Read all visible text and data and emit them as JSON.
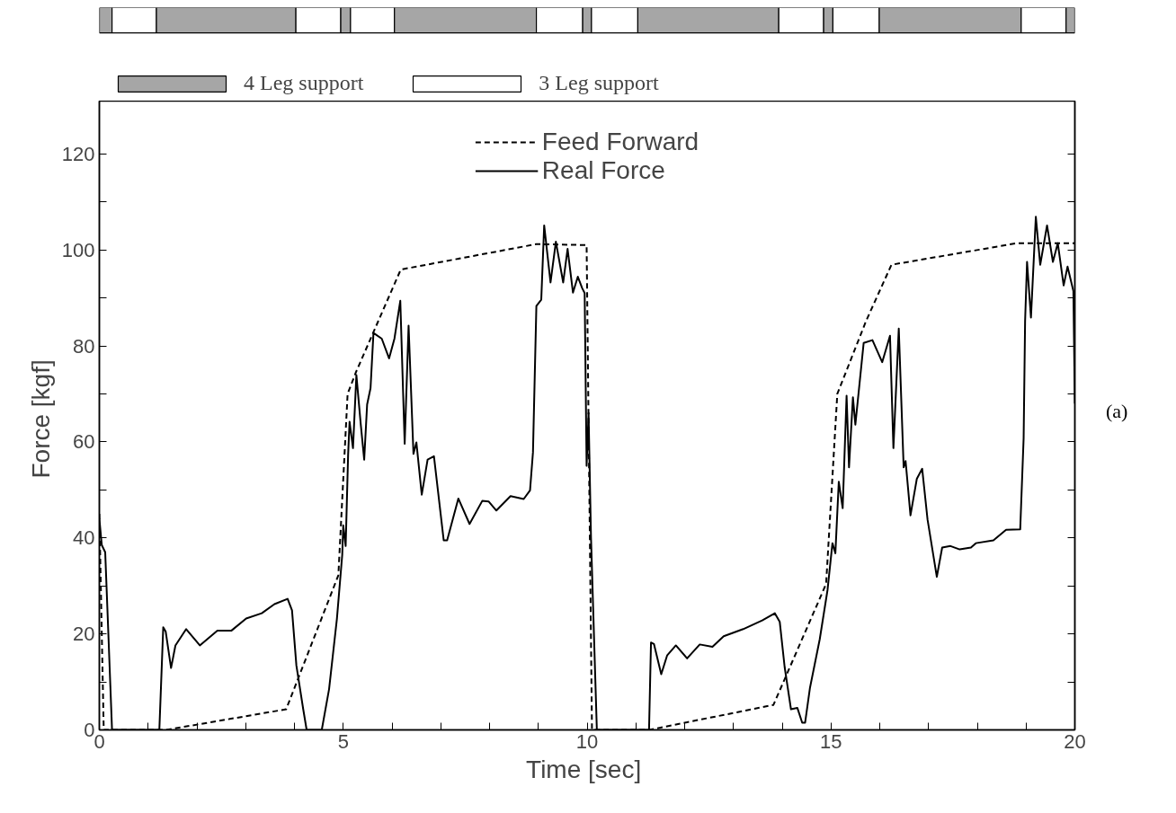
{
  "chart_data": [
    {
      "type": "bar",
      "orientation": "horizontal",
      "stacked": true,
      "categories": [
        null
      ],
      "xlim": [
        0,
        20
      ],
      "tick_labels": false,
      "legend": "bottom left",
      "series": [
        {
          "name": "4 Leg support",
          "color": "#a6a6a6",
          "values": [
            0.26
          ]
        },
        {
          "name": "3 Leg support",
          "color": "#ffffff",
          "values": [
            0.91
          ]
        },
        {
          "color": "#a6a6a6",
          "values": [
            2.86
          ]
        },
        {
          "color": "#ffffff",
          "values": [
            0.92
          ]
        },
        {
          "color": "#a6a6a6",
          "values": [
            0.2
          ]
        },
        {
          "color": "#ffffff",
          "values": [
            0.9
          ]
        },
        {
          "color": "#a6a6a6",
          "values": [
            2.91
          ]
        },
        {
          "color": "#ffffff",
          "values": [
            0.95
          ]
        },
        {
          "color": "#a6a6a6",
          "values": [
            0.18
          ]
        },
        {
          "color": "#ffffff",
          "values": [
            0.95
          ]
        },
        {
          "color": "#a6a6a6",
          "values": [
            2.89
          ]
        },
        {
          "color": "#ffffff",
          "values": [
            0.92
          ]
        },
        {
          "color": "#a6a6a6",
          "values": [
            0.19
          ]
        },
        {
          "color": "#ffffff",
          "values": [
            0.95
          ]
        },
        {
          "color": "#a6a6a6",
          "values": [
            2.91
          ]
        },
        {
          "color": "#ffffff",
          "values": [
            0.92
          ]
        },
        {
          "color": "#a6a6a6",
          "values": [
            0.18
          ]
        }
      ]
    },
    {
      "type": "line",
      "xlabel": "Time  [sec]",
      "ylabel": "Force  [kgf]",
      "xlim": [
        0,
        20
      ],
      "ylim": [
        0,
        131
      ],
      "xticks": [
        0,
        {
          "value": 1,
          "label": null
        },
        {
          "value": 2,
          "label": null
        },
        {
          "value": 3,
          "label": null
        },
        {
          "value": 4,
          "label": null
        },
        5,
        {
          "value": 6,
          "label": null
        },
        {
          "value": 7,
          "label": null
        },
        {
          "value": 8,
          "label": null
        },
        {
          "value": 9,
          "label": null
        },
        10,
        {
          "value": 11,
          "label": null
        },
        {
          "value": 12,
          "label": null
        },
        {
          "value": 13,
          "label": null
        },
        {
          "value": 14,
          "label": null
        },
        15,
        {
          "value": 16,
          "label": null
        },
        {
          "value": 17,
          "label": null
        },
        {
          "value": 18,
          "label": null
        },
        {
          "value": 19,
          "label": null
        },
        20
      ],
      "yticks": [
        0,
        {
          "value": 10,
          "label": null
        },
        20,
        {
          "value": 30,
          "label": null
        },
        40,
        {
          "value": 50,
          "label": null
        },
        60,
        {
          "value": 70,
          "label": null
        },
        80,
        {
          "value": 90,
          "label": null
        },
        100,
        {
          "value": 110,
          "label": null
        },
        120
      ],
      "grid": false,
      "legend": "top",
      "marker": "none",
      "series": [
        {
          "name": "Feed Forward",
          "color": "#000000",
          "line_style": "dashed",
          "x": [
            0,
            0.09,
            1.37,
            3.83,
            4.9,
            5.09,
            5.26,
            6.18,
            8.96,
            9.99,
            10.1,
            11.27,
            13.82,
            14.9,
            15.13,
            15.72,
            16.24,
            18.82,
            20
          ],
          "values": [
            45,
            0,
            0,
            4.3,
            32.2,
            70,
            74.5,
            95.9,
            101.2,
            101,
            0,
            0,
            5.2,
            30.4,
            70,
            85.2,
            96.9,
            101.4,
            101.4
          ]
        },
        {
          "name": "Real Force",
          "color": "#000000",
          "line_style": "solid",
          "x": [
            0,
            0.05,
            0.12,
            0.18,
            0.26,
            1.23,
            1.31,
            1.36,
            1.47,
            1.56,
            1.78,
            2.06,
            2.42,
            2.71,
            3.01,
            3.33,
            3.59,
            3.86,
            3.95,
            4.04,
            4.18,
            4.25,
            4.56,
            4.71,
            4.87,
            4.98,
            5.0,
            5.05,
            5.1,
            5.13,
            5.2,
            5.27,
            5.36,
            5.43,
            5.49,
            5.56,
            5.62,
            5.79,
            5.94,
            6.05,
            6.17,
            6.26,
            6.34,
            6.44,
            6.5,
            6.61,
            6.73,
            6.86,
            7.06,
            7.13,
            7.36,
            7.59,
            7.85,
            7.98,
            8.14,
            8.43,
            8.7,
            8.83,
            8.89,
            8.96,
            9.06,
            9.12,
            9.25,
            9.36,
            9.51,
            9.6,
            9.71,
            9.81,
            9.9,
            9.95,
            9.99,
            10.03,
            10.08,
            10.2,
            11.27,
            11.31,
            11.37,
            11.52,
            11.64,
            11.82,
            12.05,
            12.31,
            12.57,
            12.8,
            13.2,
            13.59,
            13.85,
            13.95,
            14.05,
            14.18,
            14.31,
            14.41,
            14.47,
            14.57,
            14.77,
            14.93,
            15.03,
            15.09,
            15.16,
            15.24,
            15.32,
            15.37,
            15.45,
            15.5,
            15.67,
            15.85,
            16.05,
            16.21,
            16.28,
            16.39,
            16.49,
            16.53,
            16.63,
            16.76,
            16.87,
            16.98,
            17.17,
            17.28,
            17.45,
            17.64,
            17.87,
            17.97,
            18.33,
            18.59,
            18.88,
            18.95,
            18.98,
            19.02,
            19.1,
            19.2,
            19.29,
            19.43,
            19.55,
            19.65,
            19.77,
            19.85,
            19.97,
            20
          ],
          "values": [
            44,
            38.5,
            37,
            21.3,
            0,
            0,
            21.4,
            20.5,
            12.9,
            17.6,
            21,
            17.6,
            20.7,
            20.7,
            23.2,
            24.3,
            26.2,
            27.3,
            24.9,
            13.4,
            4.3,
            0,
            0,
            8.5,
            23.1,
            36.5,
            42.6,
            38.3,
            57.2,
            64.2,
            58.7,
            73.9,
            63.6,
            56.3,
            67.8,
            71.2,
            82.7,
            81.5,
            77.4,
            81.5,
            89.4,
            59.6,
            84.2,
            57.5,
            59.9,
            49,
            56.3,
            57,
            39.5,
            39.5,
            48.2,
            42.9,
            47.7,
            47.6,
            45.7,
            48.7,
            48.1,
            49.9,
            57.8,
            88.3,
            89.6,
            105.1,
            93.2,
            101.7,
            93.2,
            100.2,
            91.1,
            94.4,
            92,
            91,
            55,
            66,
            40,
            0,
            0,
            18.2,
            17.9,
            11.6,
            15.5,
            17.6,
            14.9,
            17.8,
            17.3,
            19.5,
            21,
            22.8,
            24.3,
            22.5,
            13.1,
            4.3,
            4.6,
            1.5,
            1.5,
            8.8,
            18.9,
            29.2,
            38.9,
            36.8,
            51.7,
            46.2,
            69.6,
            54.7,
            69.3,
            63.6,
            80.6,
            81.2,
            76.6,
            82.1,
            58.7,
            83.6,
            54.7,
            56,
            44.7,
            52.3,
            54.4,
            43.8,
            31.9,
            38,
            38.3,
            37.6,
            38,
            38.9,
            39.5,
            41.7,
            41.8,
            60.8,
            85.2,
            97.5,
            85.9,
            106.9,
            96.9,
            105.1,
            97.5,
            101.4,
            92.6,
            96.5,
            91.4,
            68
          ]
        }
      ],
      "annotations": [
        "(a)"
      ]
    }
  ]
}
